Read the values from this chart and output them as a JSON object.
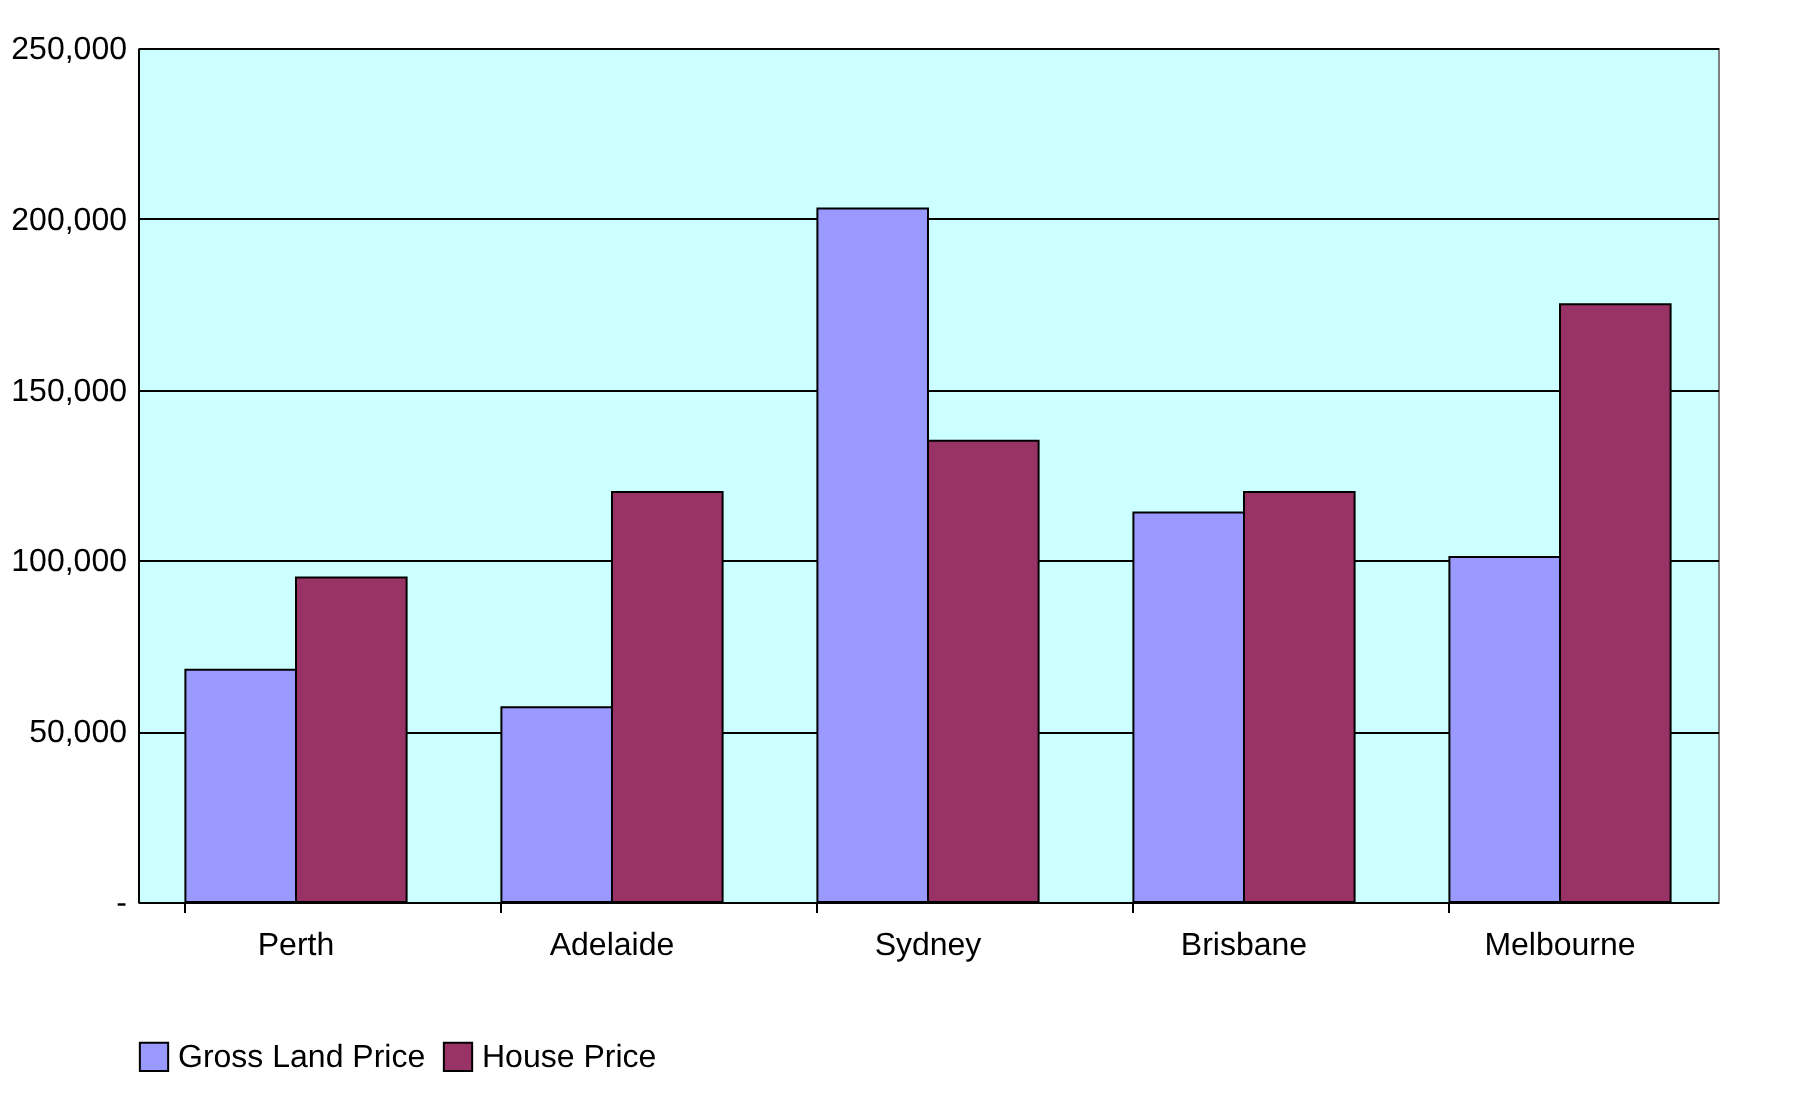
{
  "chart_data": {
    "type": "bar",
    "categories": [
      "Perth",
      "Adelaide",
      "Sydney",
      "Brisbane",
      "Melbourne"
    ],
    "series": [
      {
        "name": "Gross Land Price",
        "color": "#9999ff",
        "values": [
          68000,
          57000,
          203000,
          114000,
          101000
        ]
      },
      {
        "name": "House Price",
        "color": "#993366",
        "values": [
          95000,
          120000,
          135000,
          120000,
          175000
        ]
      }
    ],
    "ylim": [
      0,
      250000
    ],
    "yticks": [
      {
        "value": 0,
        "label": "-"
      },
      {
        "value": 50000,
        "label": "50,000"
      },
      {
        "value": 100000,
        "label": "100,000"
      },
      {
        "value": 150000,
        "label": "150,000"
      },
      {
        "value": 200000,
        "label": "200,000"
      },
      {
        "value": 250000,
        "label": "250,000"
      }
    ],
    "grid": "y",
    "legend": "bottom"
  }
}
